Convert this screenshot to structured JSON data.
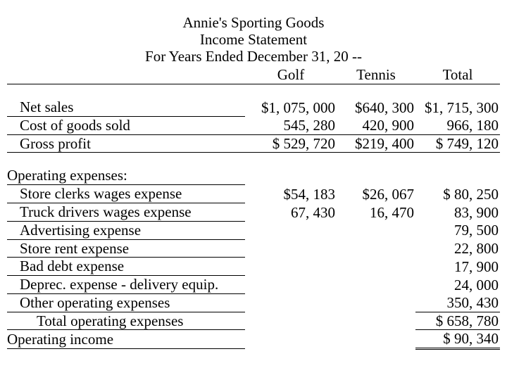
{
  "header": {
    "line1": "Annie's Sporting Goods",
    "line2": "Income Statement",
    "line3": "For Years Ended December 31, 20 --"
  },
  "columns": {
    "golf": "Golf",
    "tennis": "Tennis",
    "total": "Total"
  },
  "rows": {
    "net_sales": {
      "label": "Net sales",
      "golf": "$1, 075, 000",
      "tennis": "$640, 300",
      "total": "$1, 715, 300"
    },
    "cogs": {
      "label": "Cost of goods sold",
      "golf": "545, 280",
      "tennis": "420, 900",
      "total": "966, 180"
    },
    "gross_profit": {
      "label": "Gross profit",
      "golf": "$   529, 720",
      "tennis": "$219, 400",
      "total": "$   749, 120"
    },
    "opex_header": {
      "label": "Operating expenses:"
    },
    "store_clerks": {
      "label": "Store clerks wages expense",
      "golf": "$54, 183",
      "tennis": "$26, 067",
      "total": "$      80, 250"
    },
    "truck": {
      "label": "Truck drivers wages expense",
      "golf": "67, 430",
      "tennis": "16, 470",
      "total": "83, 900"
    },
    "advertising": {
      "label": "Advertising expense",
      "total": "79, 500"
    },
    "store_rent": {
      "label": "Store rent expense",
      "total": "22, 800"
    },
    "bad_debt": {
      "label": "Bad debt expense",
      "total": "17, 900"
    },
    "deprec": {
      "label": "Deprec. expense - delivery equip.",
      "total": "24, 000"
    },
    "other_opex": {
      "label": "Other operating expenses",
      "total": "350, 430"
    },
    "total_opex": {
      "label": "Total operating expenses",
      "total": "$   658, 780"
    },
    "op_income": {
      "label": "Operating income",
      "total": "$     90, 340"
    }
  },
  "style": {
    "font_family": "Times New Roman",
    "font_size_pt": 16,
    "text_color": "#000000",
    "background_color": "#ffffff",
    "border_color": "#000000"
  }
}
